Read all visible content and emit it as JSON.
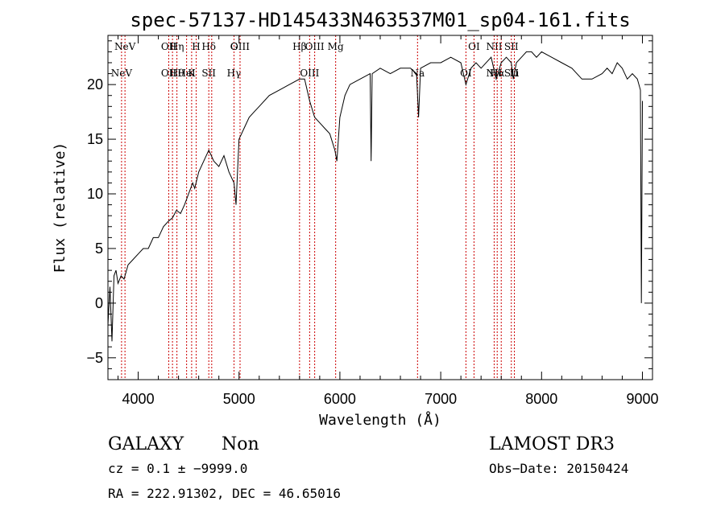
{
  "chart_data": {
    "type": "line",
    "title": "spec-57137-HD145433N463537M01_sp04-161.fits",
    "xlabel": "Wavelength (Å)",
    "ylabel": "Flux (relative)",
    "xlim": [
      3700,
      9100
    ],
    "ylim": [
      -7,
      24.5
    ],
    "xticks": [
      "4000",
      "5000",
      "6000",
      "7000",
      "8000",
      "9000"
    ],
    "xtick_values": [
      4000,
      5000,
      6000,
      7000,
      8000,
      9000
    ],
    "yticks": [
      "−5",
      "0",
      "5",
      "10",
      "15",
      "20"
    ],
    "ytick_values": [
      -5,
      0,
      5,
      10,
      15,
      20
    ],
    "grid": false,
    "series": [
      {
        "x": [
          3700,
          3720,
          3740,
          3760,
          3780,
          3800,
          3830,
          3860,
          3900,
          3950,
          4000,
          4050,
          4100,
          4150,
          4200,
          4250,
          4300,
          4340,
          4380,
          4420,
          4460,
          4500,
          4540,
          4560,
          4600,
          4650,
          4700,
          4750,
          4800,
          4850,
          4900,
          4950,
          4970,
          5000,
          5050,
          5100,
          5150,
          5200,
          5300,
          5400,
          5500,
          5600,
          5650,
          5700,
          5750,
          5800,
          5850,
          5900,
          5950,
          5970,
          6000,
          6050,
          6100,
          6200,
          6300,
          6310,
          6320,
          6400,
          6500,
          6600,
          6700,
          6760,
          6780,
          6800,
          6900,
          7000,
          7100,
          7200,
          7250,
          7300,
          7350,
          7400,
          7500,
          7550,
          7600,
          7650,
          7700,
          7720,
          7750,
          7800,
          7850,
          7900,
          7950,
          8000,
          8100,
          8200,
          8300,
          8400,
          8500,
          8600,
          8650,
          8700,
          8750,
          8800,
          8850,
          8900,
          8950,
          8980,
          8990,
          9000
        ],
        "y": [
          -2,
          1.5,
          -3.5,
          2.5,
          3,
          1.8,
          2.5,
          2.2,
          3.5,
          4,
          4.5,
          5,
          5,
          6,
          6,
          7,
          7.5,
          7.8,
          8.5,
          8.2,
          9,
          10,
          11,
          10.5,
          12,
          13,
          14,
          13,
          12.5,
          13.5,
          12,
          11,
          9,
          15,
          16,
          17,
          17.5,
          18,
          19,
          19.5,
          20,
          20.5,
          20.5,
          18.5,
          17,
          16.5,
          16,
          15.5,
          14,
          13,
          17,
          19,
          20,
          20.5,
          21,
          13,
          21,
          21.5,
          21,
          21.5,
          21.5,
          21,
          17,
          21.5,
          22,
          22,
          22.5,
          22,
          20,
          21.5,
          22,
          21.5,
          22.5,
          20.5,
          22,
          22.5,
          22,
          20.5,
          22,
          22.5,
          23,
          23,
          22.5,
          23,
          22.5,
          22,
          21.5,
          20.5,
          20.5,
          21,
          21.5,
          21,
          22,
          21.5,
          20.5,
          21,
          20.5,
          19.5,
          0,
          18.5
        ]
      }
    ],
    "line_markers": [
      {
        "x": 3835,
        "top": "",
        "bottom": "NeV"
      },
      {
        "x": 3869,
        "top": "NeV",
        "bottom": ""
      },
      {
        "x": 4303,
        "top": "OII",
        "bottom": "OII"
      },
      {
        "x": 4340,
        "top": "",
        "bottom": ""
      },
      {
        "x": 4384,
        "top": "Hη",
        "bottom": "Hθ"
      },
      {
        "x": 4480,
        "top": "",
        "bottom": "HeI"
      },
      {
        "x": 4530,
        "top": "",
        "bottom": "K"
      },
      {
        "x": 4575,
        "top": "H",
        "bottom": ""
      },
      {
        "x": 4700,
        "top": "Hδ",
        "bottom": "SII"
      },
      {
        "x": 4729,
        "top": "",
        "bottom": ""
      },
      {
        "x": 4950,
        "top": "G",
        "bottom": "Hγ"
      },
      {
        "x": 5010,
        "top": "OIII",
        "bottom": ""
      },
      {
        "x": 5600,
        "top": "Hβ",
        "bottom": ""
      },
      {
        "x": 5700,
        "top": "",
        "bottom": "OIII"
      },
      {
        "x": 5750,
        "top": "OIII",
        "bottom": ""
      },
      {
        "x": 5958,
        "top": "Mg",
        "bottom": ""
      },
      {
        "x": 6770,
        "top": "",
        "bottom": "Na"
      },
      {
        "x": 7250,
        "top": "",
        "bottom": "OI"
      },
      {
        "x": 7330,
        "top": "OI",
        "bottom": ""
      },
      {
        "x": 7530,
        "top": "NII",
        "bottom": "NII"
      },
      {
        "x": 7560,
        "top": "",
        "bottom": "Hα"
      },
      {
        "x": 7600,
        "top": "",
        "bottom": ""
      },
      {
        "x": 7700,
        "top": "SII",
        "bottom": "SII"
      },
      {
        "x": 7730,
        "top": "",
        "bottom": "Li"
      }
    ]
  },
  "info": {
    "class": "GALAXY",
    "subclass": "Non",
    "survey": "LAMOST DR3",
    "cz": "cz = 0.1 ± −9999.0",
    "obs_date": "Obs−Date: 20150424",
    "radec": "RA = 222.91302, DEC =  46.65016"
  }
}
